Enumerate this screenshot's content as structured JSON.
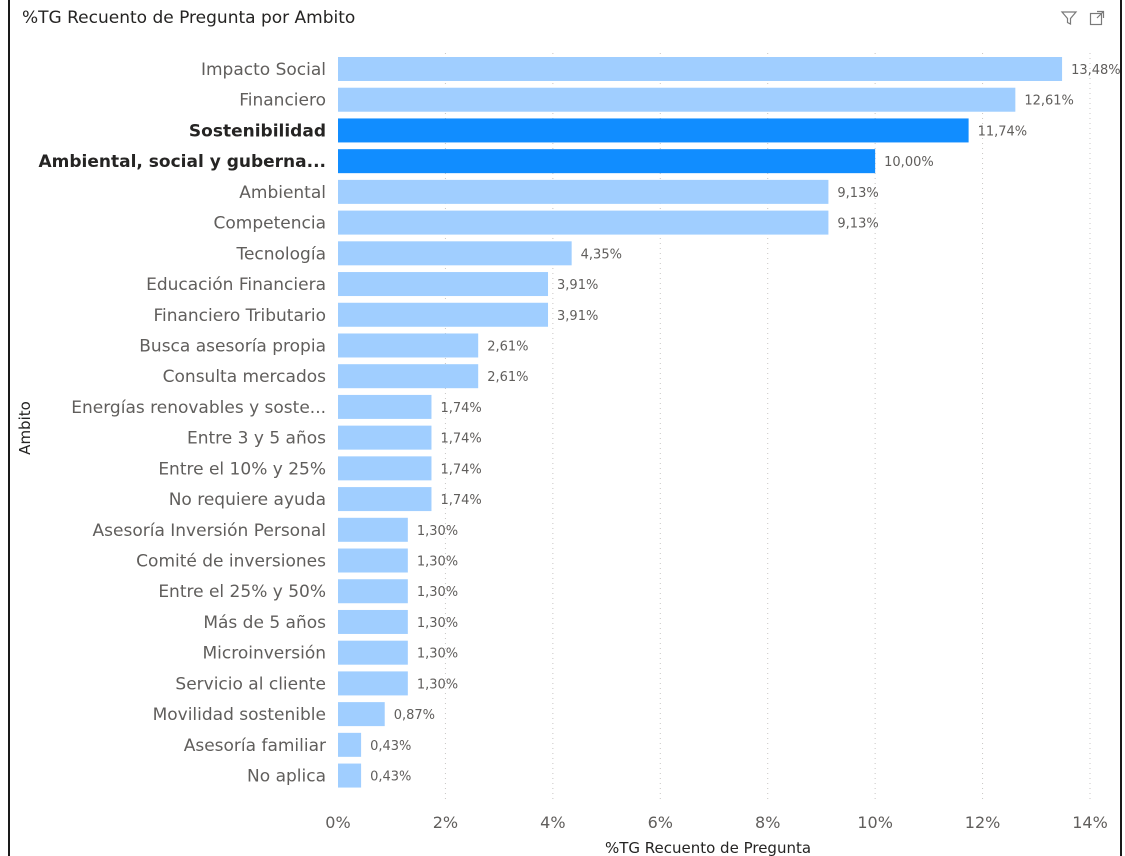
{
  "visual": {
    "title": "%TG Recuento de Pregunta por Ambito",
    "icons": [
      "filter-icon",
      "focus-mode-icon"
    ]
  },
  "chart_data": {
    "type": "bar",
    "orientation": "horizontal",
    "xlabel": "%TG Recuento de Pregunta",
    "ylabel": "Ambito",
    "xlim": [
      0,
      14
    ],
    "xticks": [
      "0%",
      "2%",
      "4%",
      "6%",
      "8%",
      "10%",
      "12%",
      "14%"
    ],
    "grid": true,
    "colors": {
      "default": "#a0ceff",
      "highlight": "#118dff"
    },
    "categories": [
      "Impacto Social",
      "Financiero",
      "Sostenibilidad",
      "Ambiental, social y guberna...",
      "Ambiental",
      "Competencia",
      "Tecnología",
      "Educación Financiera",
      "Financiero Tributario",
      "Busca asesoría propia",
      "Consulta mercados",
      "Energías renovables y soste...",
      "Entre 3 y 5 años",
      "Entre el 10% y 25%",
      "No requiere ayuda",
      "Asesoría Inversión Personal",
      "Comité de inversiones",
      "Entre el 25% y 50%",
      "Más de 5 años",
      "Microinversión",
      "Servicio al cliente",
      "Movilidad sostenible",
      "Asesoría familiar",
      "No aplica"
    ],
    "values": [
      13.48,
      12.61,
      11.74,
      10.0,
      9.13,
      9.13,
      4.35,
      3.91,
      3.91,
      2.61,
      2.61,
      1.74,
      1.74,
      1.74,
      1.74,
      1.3,
      1.3,
      1.3,
      1.3,
      1.3,
      1.3,
      0.87,
      0.43,
      0.43
    ],
    "value_labels": [
      "13,48%",
      "12,61%",
      "11,74%",
      "10,00%",
      "9,13%",
      "9,13%",
      "4,35%",
      "3,91%",
      "3,91%",
      "2,61%",
      "2,61%",
      "1,74%",
      "1,74%",
      "1,74%",
      "1,74%",
      "1,30%",
      "1,30%",
      "1,30%",
      "1,30%",
      "1,30%",
      "1,30%",
      "0,87%",
      "0,43%",
      "0,43%"
    ],
    "highlighted": [
      "Sostenibilidad",
      "Ambiental, social y guberna..."
    ]
  }
}
